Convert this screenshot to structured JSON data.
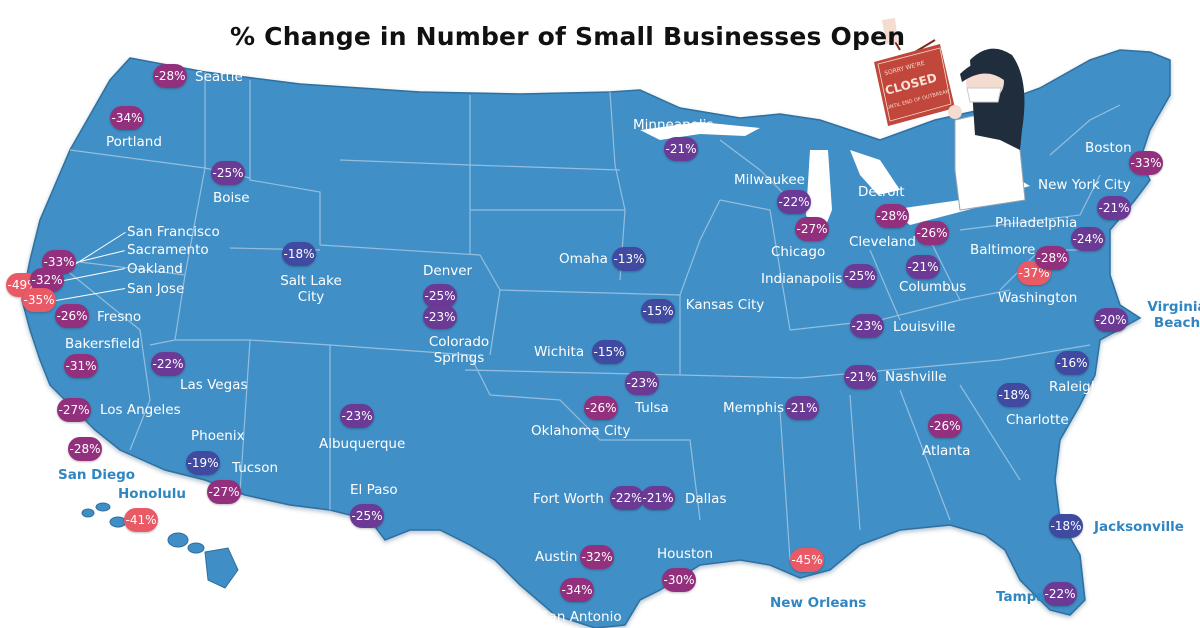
{
  "title": "% Change in Number of Small Businesses Open",
  "sign": {
    "top_line": "SORRY WE'RE",
    "main": "CLOSED",
    "bottom_line": "UNTIL END OF OUTBREAK"
  },
  "colors": {
    "land": "#3f8fc6",
    "land_edge": "#2f6f9f",
    "state_border": "#9cc4e2",
    "outside_label": "#2f86c3",
    "scale": {
      "strong_decline": "#e95a66",
      "moderate_decline": "#93307e",
      "mild_decline": "#6a3a95",
      "light_decline": "#3f4aa0"
    }
  },
  "cities": [
    {
      "id": "seattle",
      "name": "Seattle",
      "value": "-28%"
    },
    {
      "id": "portland",
      "name": "Portland",
      "value": "-34%"
    },
    {
      "id": "boise",
      "name": "Boise",
      "value": "-25%"
    },
    {
      "id": "san-francisco",
      "name": "San Francisco",
      "value": "-49%"
    },
    {
      "id": "sacramento",
      "name": "Sacramento",
      "value": "-33%"
    },
    {
      "id": "oakland",
      "name": "Oakland",
      "value": "-32%"
    },
    {
      "id": "san-jose",
      "name": "San Jose",
      "value": "-35%"
    },
    {
      "id": "fresno",
      "name": "Fresno",
      "value": "-26%"
    },
    {
      "id": "bakersfield",
      "name": "Bakersfield",
      "value": "-31%"
    },
    {
      "id": "los-angeles",
      "name": "Los Angeles",
      "value": "-27%"
    },
    {
      "id": "san-diego",
      "name": "San Diego",
      "value": "-28%"
    },
    {
      "id": "honolulu",
      "name": "Honolulu",
      "value": "-41%"
    },
    {
      "id": "las-vegas",
      "name": "Las Vegas",
      "value": "-22%"
    },
    {
      "id": "salt-lake-city",
      "name": "Salt Lake City",
      "value": "-18%"
    },
    {
      "id": "phoenix",
      "name": "Phoenix",
      "value": "-19%"
    },
    {
      "id": "tucson",
      "name": "Tucson",
      "value": "-27%"
    },
    {
      "id": "denver",
      "name": "Denver",
      "value": "-25%"
    },
    {
      "id": "colorado-springs",
      "name": "Colorado Springs",
      "value": "-23%"
    },
    {
      "id": "albuquerque",
      "name": "Albuquerque",
      "value": "-23%"
    },
    {
      "id": "el-paso",
      "name": "El Paso",
      "value": "-25%"
    },
    {
      "id": "minneapolis",
      "name": "Minneapolis",
      "value": "-21%"
    },
    {
      "id": "omaha",
      "name": "Omaha",
      "value": "-13%"
    },
    {
      "id": "kansas-city",
      "name": "Kansas City",
      "value": "-15%"
    },
    {
      "id": "wichita",
      "name": "Wichita",
      "value": "-15%"
    },
    {
      "id": "tulsa",
      "name": "Tulsa",
      "value": "-23%"
    },
    {
      "id": "oklahoma-city",
      "name": "Oklahoma City",
      "value": "-26%"
    },
    {
      "id": "fort-worth",
      "name": "Fort Worth",
      "value": "-22%"
    },
    {
      "id": "dallas",
      "name": "Dallas",
      "value": "-21%"
    },
    {
      "id": "austin",
      "name": "Austin",
      "value": "-32%"
    },
    {
      "id": "san-antonio",
      "name": "San Antonio",
      "value": "-34%"
    },
    {
      "id": "houston",
      "name": "Houston",
      "value": "-30%"
    },
    {
      "id": "new-orleans",
      "name": "New Orleans",
      "value": "-45%"
    },
    {
      "id": "memphis",
      "name": "Memphis",
      "value": "-21%"
    },
    {
      "id": "milwaukee",
      "name": "Milwaukee",
      "value": "-22%"
    },
    {
      "id": "chicago",
      "name": "Chicago",
      "value": "-27%"
    },
    {
      "id": "indianapolis",
      "name": "Indianapolis",
      "value": "-25%"
    },
    {
      "id": "louisville",
      "name": "Louisville",
      "value": "-23%"
    },
    {
      "id": "nashville",
      "name": "Nashville",
      "value": "-21%"
    },
    {
      "id": "detroit",
      "name": "Detroit",
      "value": "-28%"
    },
    {
      "id": "cleveland",
      "name": "Cleveland",
      "value": "-26%"
    },
    {
      "id": "columbus",
      "name": "Columbus",
      "value": "-21%"
    },
    {
      "id": "atlanta",
      "name": "Atlanta",
      "value": "-26%"
    },
    {
      "id": "charlotte",
      "name": "Charlotte",
      "value": "-18%"
    },
    {
      "id": "raleigh",
      "name": "Raleigh",
      "value": "-16%"
    },
    {
      "id": "virginia-beach",
      "name": "Virginia Beach",
      "value": "-20%"
    },
    {
      "id": "washington",
      "name": "Washington",
      "value": "-37%"
    },
    {
      "id": "baltimore",
      "name": "Baltimore",
      "value": "-28%"
    },
    {
      "id": "philadelphia",
      "name": "Philadelphia",
      "value": "-24%"
    },
    {
      "id": "new-york-city",
      "name": "New York City",
      "value": "-21%"
    },
    {
      "id": "boston",
      "name": "Boston",
      "value": "-33%"
    },
    {
      "id": "jacksonville",
      "name": "Jacksonville",
      "value": "-18%"
    },
    {
      "id": "tampa",
      "name": "Tampa",
      "value": "-22%"
    }
  ]
}
